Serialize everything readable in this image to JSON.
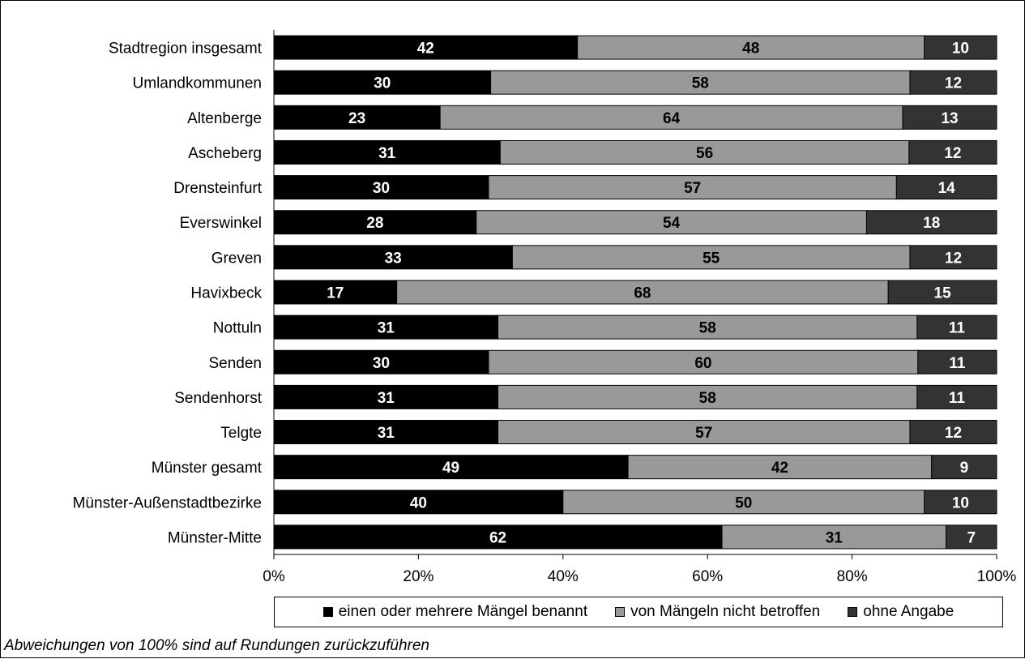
{
  "chart_data": {
    "type": "bar",
    "orientation": "horizontal",
    "stacked": true,
    "categories": [
      "Stadtregion insgesamt",
      "Umlandkommunen",
      "Altenberge",
      "Ascheberg",
      "Drensteinfurt",
      "Everswinkel",
      "Greven",
      "Havixbeck",
      "Nottuln",
      "Senden",
      "Sendenhorst",
      "Telgte",
      "Münster gesamt",
      "Münster-Außenstadtbezirke",
      "Münster-Mitte"
    ],
    "series": [
      {
        "name": "einen oder mehrere Mängel benannt",
        "color": "#000000",
        "label_color": "#ffffff",
        "values": [
          42,
          30,
          23,
          31,
          30,
          28,
          33,
          17,
          31,
          30,
          31,
          31,
          49,
          40,
          62
        ]
      },
      {
        "name": "von Mängeln nicht betroffen",
        "color": "#999999",
        "label_color": "#000000",
        "values": [
          48,
          58,
          64,
          56,
          57,
          54,
          55,
          68,
          58,
          60,
          58,
          57,
          42,
          50,
          31
        ]
      },
      {
        "name": "ohne Angabe",
        "color": "#333333",
        "label_color": "#ffffff",
        "values": [
          10,
          12,
          13,
          12,
          14,
          18,
          12,
          15,
          11,
          11,
          11,
          12,
          9,
          10,
          7
        ]
      }
    ],
    "xlim": [
      0,
      100
    ],
    "x_ticks": [
      0,
      20,
      40,
      60,
      80,
      100
    ],
    "x_tick_labels": [
      "0%",
      "20%",
      "40%",
      "60%",
      "80%",
      "100%"
    ],
    "grid": false,
    "legend_position": "bottom",
    "footnote": "Abweichungen von 100% sind auf Rundungen zurückzuführen"
  }
}
